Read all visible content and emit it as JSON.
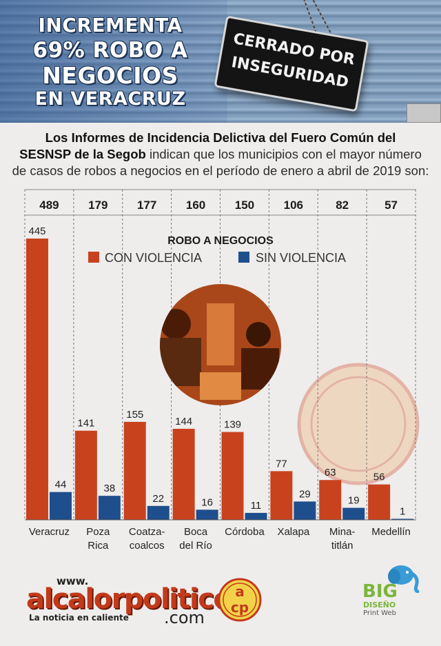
{
  "header": {
    "title_lines": [
      "INCREMENTA",
      "69% ROBO A",
      "NEGOCIOS",
      "EN VERACRUZ"
    ],
    "sign_lines": [
      "CERRADO POR",
      "INSEGURIDAD"
    ]
  },
  "intro": {
    "bold_1": "Los Informes de Incidencia Delictiva del Fuero Común del",
    "bold_2": "SESNSP de la Segob",
    "text_2": " indican que los municipios con el mayor número",
    "text_3": "de casos de robos a negocios en el período de enero a abril de 2019 son:"
  },
  "chart_data": {
    "type": "bar",
    "title": "ROBO A NEGOCIOS",
    "categories": [
      "Veracruz",
      "Poza Rica",
      "Coatza-coalcos",
      "Boca del Río",
      "Córdoba",
      "Xalapa",
      "Mina-titlán",
      "Medellín"
    ],
    "category_lines": [
      [
        "Veracruz"
      ],
      [
        "Poza",
        "Rica"
      ],
      [
        "Coatza-",
        "coalcos"
      ],
      [
        "Boca",
        "del Río"
      ],
      [
        "Córdoba"
      ],
      [
        "Xalapa"
      ],
      [
        "Mina-",
        "titlán"
      ],
      [
        "Medellín"
      ]
    ],
    "totals": [
      "489",
      "179",
      "177",
      "160",
      "150",
      "106",
      "82",
      "57"
    ],
    "series": [
      {
        "name": "CON VIOLENCIA",
        "color": "#c9421e",
        "values": [
          445,
          141,
          155,
          144,
          139,
          77,
          63,
          56
        ]
      },
      {
        "name": "SIN VIOLENCIA",
        "color": "#1f4e8c",
        "values": [
          44,
          38,
          22,
          16,
          11,
          29,
          19,
          1
        ]
      }
    ],
    "ylim": [
      0,
      445
    ]
  },
  "footer": {
    "www": "www.",
    "site": "alcalorpolitico",
    "dotcom": ".com",
    "tagline": "La noticia en caliente",
    "big": "BIG",
    "big_diseno": "DISEÑO",
    "big_sub": "Print Web"
  }
}
